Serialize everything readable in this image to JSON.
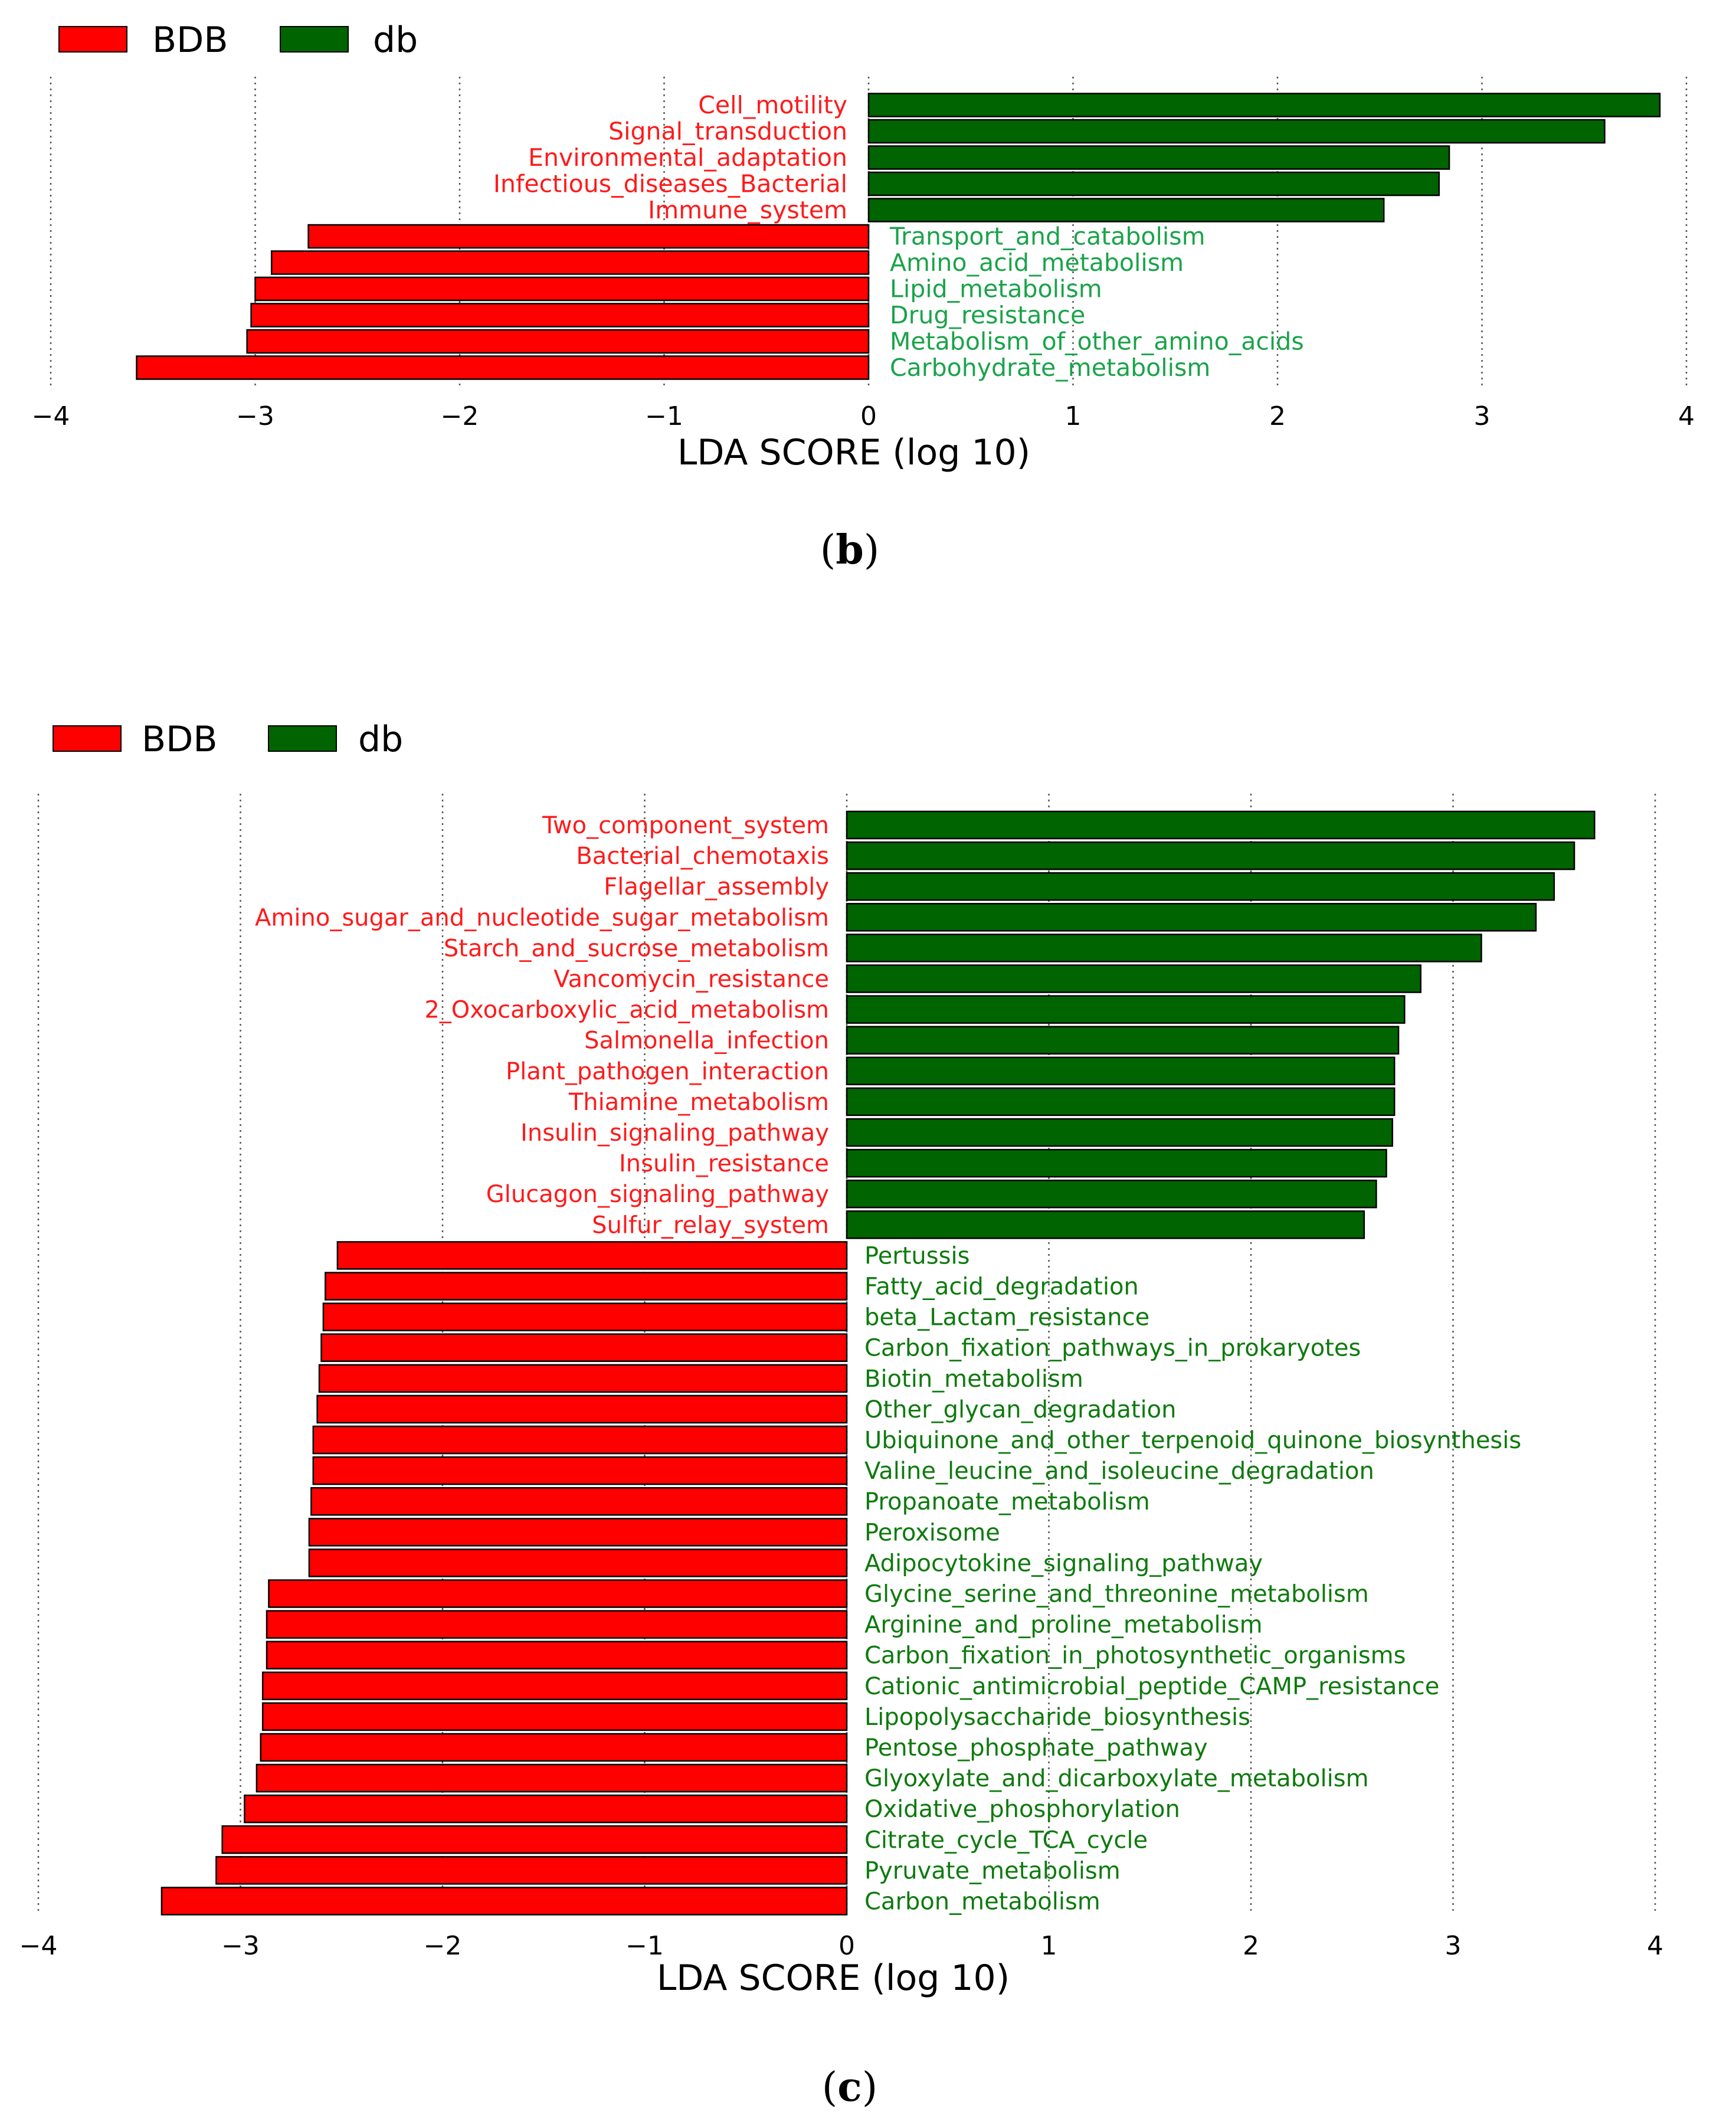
{
  "colors": {
    "bdb": "#ff0000",
    "db": "#006400",
    "bdb_text": "#ff1a1a",
    "db_text_b": "#1aa34a",
    "db_text_c": "#0e7a0e",
    "grid": "#555555",
    "bar_edge": "#000000"
  },
  "chart_data": [
    {
      "type": "bar",
      "orientation": "horizontal",
      "panel_label": "b",
      "xlabel": "LDA SCORE (log 10)",
      "xlim": [
        -4,
        4
      ],
      "xticks": [
        -4,
        -3,
        -2,
        -1,
        0,
        1,
        2,
        3,
        4
      ],
      "xtick_labels": [
        "−4",
        "−3",
        "−2",
        "−1",
        "0",
        "1",
        "2",
        "3",
        "4"
      ],
      "grid": "vertical dotted",
      "legend": [
        {
          "name": "BDB",
          "color": "#ff0000"
        },
        {
          "name": "db",
          "color": "#006400"
        }
      ],
      "legend_position": "top-left, above plot",
      "series": [
        {
          "name": "db",
          "categories": [
            "Cell_motility",
            "Signal_transduction",
            "Environmental_adaptation",
            "Infectious_diseases_Bacterial",
            "Immune_system"
          ],
          "values": [
            3.87,
            3.6,
            2.84,
            2.79,
            2.52
          ]
        },
        {
          "name": "BDB",
          "categories": [
            "Transport_and_catabolism",
            "Amino_acid_metabolism",
            "Lipid_metabolism",
            "Drug_resistance",
            "Metabolism_of_other_amino_acids",
            "Carbohydrate_metabolism"
          ],
          "values": [
            -2.74,
            -2.92,
            -3.0,
            -3.02,
            -3.04,
            -3.58
          ]
        }
      ]
    },
    {
      "type": "bar",
      "orientation": "horizontal",
      "panel_label": "c",
      "xlabel": "LDA SCORE (log 10)",
      "xlim": [
        -4,
        4
      ],
      "xticks": [
        -4,
        -3,
        -2,
        -1,
        0,
        1,
        2,
        3,
        4
      ],
      "xtick_labels": [
        "−4",
        "−3",
        "−2",
        "−1",
        "0",
        "1",
        "2",
        "3",
        "4"
      ],
      "grid": "vertical dotted",
      "legend": [
        {
          "name": "BDB",
          "color": "#ff0000"
        },
        {
          "name": "db",
          "color": "#006400"
        }
      ],
      "legend_position": "top-left, above plot",
      "series": [
        {
          "name": "db",
          "categories": [
            "Two_component_system",
            "Bacterial_chemotaxis",
            "Flagellar_assembly",
            "Amino_sugar_and_nucleotide_sugar_metabolism",
            "Starch_and_sucrose_metabolism",
            "Vancomycin_resistance",
            "2_Oxocarboxylic_acid_metabolism",
            "Salmonella_infection",
            "Plant_pathogen_interaction",
            "Thiamine_metabolism",
            "Insulin_signaling_pathway",
            "Insulin_resistance",
            "Glucagon_signaling_pathway",
            "Sulfur_relay_system"
          ],
          "values": [
            3.7,
            3.6,
            3.5,
            3.41,
            3.14,
            2.84,
            2.76,
            2.73,
            2.71,
            2.71,
            2.7,
            2.67,
            2.62,
            2.56
          ]
        },
        {
          "name": "BDB",
          "categories": [
            "Pertussis",
            "Fatty_acid_degradation",
            "beta_Lactam_resistance",
            "Carbon_fixation_pathways_in_prokaryotes",
            "Biotin_metabolism",
            "Other_glycan_degradation",
            "Ubiquinone_and_other_terpenoid_quinone_biosynthesis",
            "Valine_leucine_and_isoleucine_degradation",
            "Propanoate_metabolism",
            "Peroxisome",
            "Adipocytokine_signaling_pathway",
            "Glycine_serine_and_threonine_metabolism",
            "Arginine_and_proline_metabolism",
            "Carbon_fixation_in_photosynthetic_organisms",
            "Cationic_antimicrobial_peptide_CAMP_resistance",
            "Lipopolysaccharide_biosynthesis",
            "Pentose_phosphate_pathway",
            "Glyoxylate_and_dicarboxylate_metabolism",
            "Oxidative_phosphorylation",
            "Citrate_cycle_TCA_cycle",
            "Pyruvate_metabolism",
            "Carbon_metabolism"
          ],
          "values": [
            -2.52,
            -2.58,
            -2.59,
            -2.6,
            -2.61,
            -2.62,
            -2.64,
            -2.64,
            -2.65,
            -2.66,
            -2.66,
            -2.86,
            -2.87,
            -2.87,
            -2.89,
            -2.89,
            -2.9,
            -2.92,
            -2.98,
            -3.09,
            -3.12,
            -3.39
          ]
        }
      ]
    }
  ]
}
